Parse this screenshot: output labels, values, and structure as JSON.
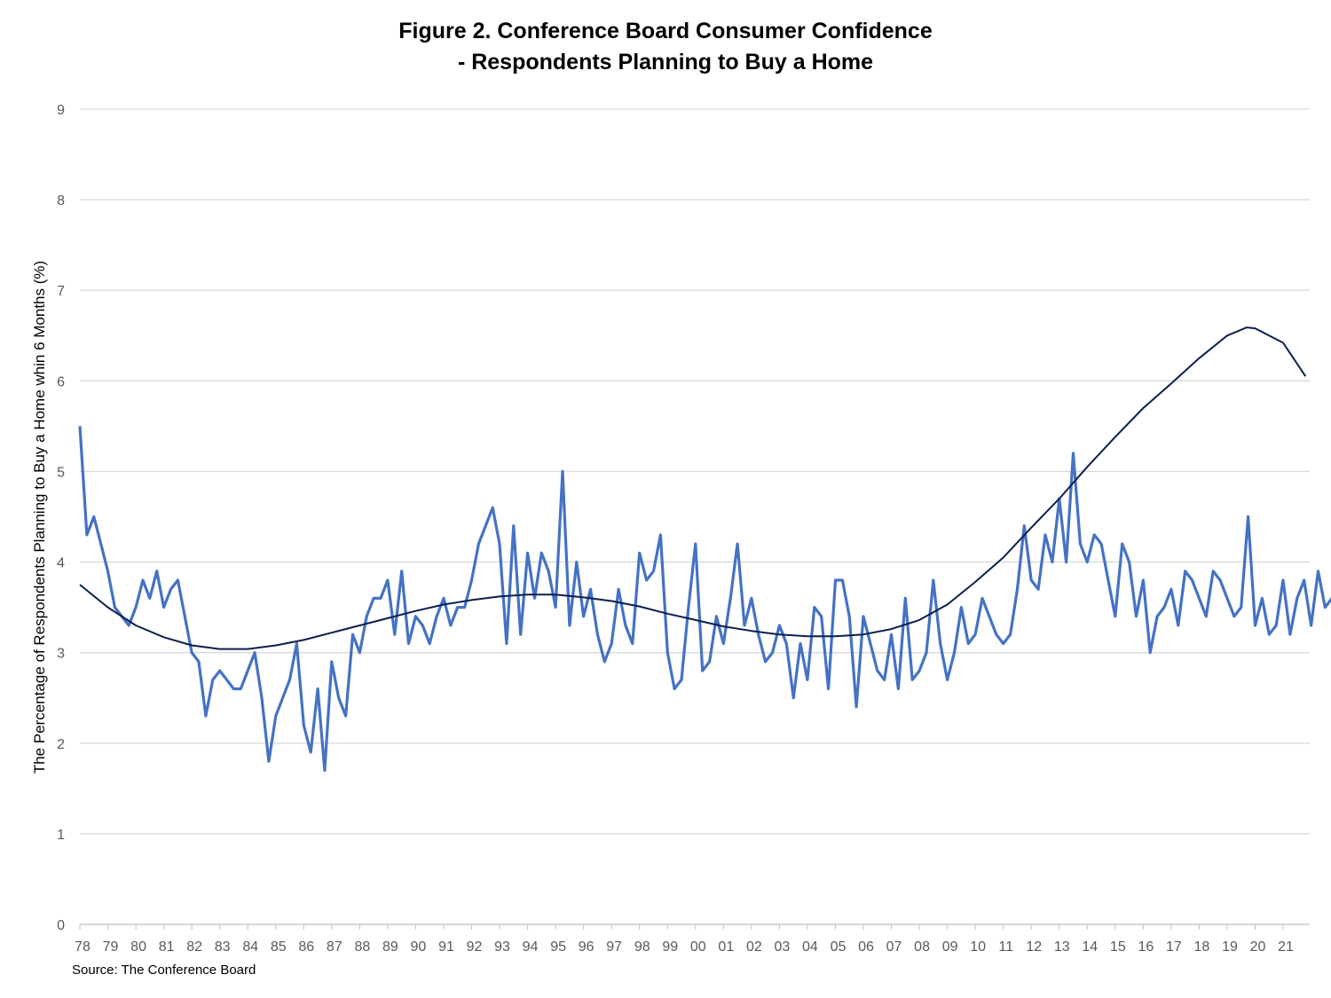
{
  "chart_data": {
    "type": "line",
    "title_line1": "Figure 2. Conference Board Consumer Confidence",
    "title_line2": "- Respondents Planning to Buy a Home",
    "ylabel": "The Percentage of Respondents Planning to Buy a Home whin 6 Months (%)",
    "source": "Source: The Conference Board",
    "ylim": [
      0,
      9
    ],
    "y_ticks": [
      "0",
      "1",
      "2",
      "3",
      "4",
      "5",
      "6",
      "7",
      "8",
      "9"
    ],
    "x_tick_labels": [
      "78",
      "79",
      "80",
      "81",
      "82",
      "83",
      "84",
      "85",
      "86",
      "87",
      "88",
      "89",
      "90",
      "91",
      "92",
      "93",
      "94",
      "95",
      "96",
      "97",
      "98",
      "99",
      "00",
      "01",
      "02",
      "03",
      "04",
      "05",
      "06",
      "07",
      "08",
      "09",
      "10",
      "11",
      "12",
      "13",
      "14",
      "15",
      "16",
      "17",
      "18",
      "19",
      "20",
      "21"
    ],
    "grid": "horizontal",
    "colors": {
      "series": "#4472C4",
      "trend": "#0B1F4F",
      "grid": "#D9D9D9"
    },
    "series": [
      {
        "role": "monthly",
        "x_start": 1978.0,
        "x_step": 0.25,
        "values": [
          5.5,
          4.3,
          4.5,
          4.2,
          3.9,
          3.5,
          3.4,
          3.3,
          3.5,
          3.8,
          3.6,
          3.9,
          3.5,
          3.7,
          3.8,
          3.4,
          3.0,
          2.9,
          2.3,
          2.7,
          2.8,
          2.7,
          2.6,
          2.6,
          2.8,
          3.0,
          2.5,
          1.8,
          2.3,
          2.5,
          2.7,
          3.1,
          2.2,
          1.9,
          2.6,
          1.7,
          2.9,
          2.5,
          2.3,
          3.2,
          3.0,
          3.4,
          3.6,
          3.6,
          3.8,
          3.2,
          3.9,
          3.1,
          3.4,
          3.3,
          3.1,
          3.4,
          3.6,
          3.3,
          3.5,
          3.5,
          3.8,
          4.2,
          4.4,
          4.6,
          4.2,
          3.1,
          4.4,
          3.2,
          4.1,
          3.6,
          4.1,
          3.9,
          3.5,
          5.0,
          3.3,
          4.0,
          3.4,
          3.7,
          3.2,
          2.9,
          3.1,
          3.7,
          3.3,
          3.1,
          4.1,
          3.8,
          3.9,
          4.3,
          3.0,
          2.6,
          2.7,
          3.5,
          4.2,
          2.8,
          2.9,
          3.4,
          3.1,
          3.6,
          4.2,
          3.3,
          3.6,
          3.2,
          2.9,
          3.0,
          3.3,
          3.1,
          2.5,
          3.1,
          2.7,
          3.5,
          3.4,
          2.6,
          3.8,
          3.8,
          3.4,
          2.4,
          3.4,
          3.1,
          2.8,
          2.7,
          3.2,
          2.6,
          3.6,
          2.7,
          2.8,
          3.0,
          3.8,
          3.1,
          2.7,
          3.0,
          3.5,
          3.1,
          3.2,
          3.6,
          3.4,
          3.2,
          3.1,
          3.2,
          3.7,
          4.4,
          3.8,
          3.7,
          4.3,
          4.0,
          4.7,
          4.0,
          5.2,
          4.2,
          4.0,
          4.3,
          4.2,
          3.8,
          3.4,
          4.2,
          4.0,
          3.4,
          3.8,
          3.0,
          3.4,
          3.5,
          3.7,
          3.3,
          3.9,
          3.8,
          3.6,
          3.4,
          3.9,
          3.8,
          3.6,
          3.4,
          3.5,
          4.5,
          3.3,
          3.6,
          3.2,
          3.3,
          3.8,
          3.2,
          3.6,
          3.8,
          3.3,
          3.9,
          3.5,
          3.6,
          4.1,
          3.4,
          3.8,
          4.0,
          4.1,
          3.8,
          2.6,
          3.4,
          4.0,
          4.1,
          3.5,
          3.7,
          3.4,
          3.0,
          2.9,
          2.8,
          3.4,
          3.6,
          3.8,
          3.1,
          2.9,
          3.2,
          3.0,
          3.4,
          2.8,
          2.6,
          2.7,
          3.2,
          2.5,
          2.4,
          3.4,
          2.6,
          3.2,
          2.5,
          2.6,
          2.5,
          2.2,
          2.8,
          2.9,
          2.6,
          2.4,
          2.6,
          2.8,
          2.1,
          1.7,
          2.6,
          2.8,
          2.2,
          2.0,
          2.2,
          2.1,
          3.7,
          3.5,
          5.2,
          4.6,
          5.5,
          4.1,
          4.4,
          4.7,
          5.4,
          4.5,
          5.2,
          5.4,
          5.5,
          5.4,
          6.6,
          3.8,
          5.6,
          5.5,
          5.4,
          6.9,
          5.4,
          6.2,
          5.0,
          5.5,
          5.6,
          5.5,
          5.3,
          5.1,
          5.0,
          5.6,
          5.9,
          5.7,
          5.6,
          6.2,
          5.8,
          5.4,
          5.8,
          6.1,
          7.4,
          6.3,
          5.8,
          5.9,
          6.2,
          5.9,
          6.5,
          6.7,
          6.0,
          6.5,
          6.3,
          6.7,
          7.3,
          6.4,
          6.8,
          7.4,
          6.0,
          6.4,
          6.0,
          6.3,
          6.2,
          6.0,
          6.3,
          6.1,
          6.6,
          6.4,
          6.3,
          5.5,
          5.4,
          6.3,
          6.4,
          5.8,
          7.4,
          6.1,
          5.1,
          6.5,
          6.6,
          5.9,
          6.8,
          6.3,
          6.1,
          6.2,
          6.1,
          7.5,
          6.6,
          6.3,
          6.9,
          6.1,
          5.8,
          7.5
        ]
      },
      {
        "role": "trend",
        "x": [
          1978.0,
          1979.0,
          1980.0,
          1981.0,
          1982.0,
          1983.0,
          1984.0,
          1985.0,
          1986.0,
          1987.0,
          1988.0,
          1989.0,
          1990.0,
          1991.0,
          1992.0,
          1993.0,
          1994.0,
          1995.0,
          1996.0,
          1997.0,
          1998.0,
          1999.0,
          2000.0,
          2001.0,
          2002.0,
          2003.0,
          2004.0,
          2005.0,
          2006.0,
          2007.0,
          2008.0,
          2009.0,
          2010.0,
          2011.0,
          2012.0,
          2013.0,
          2014.0,
          2015.0,
          2016.0,
          2017.0,
          2018.0,
          2019.0,
          2019.7,
          2020.0,
          2021.0,
          2021.8
        ],
        "values": [
          3.75,
          3.5,
          3.3,
          3.17,
          3.08,
          3.04,
          3.04,
          3.08,
          3.14,
          3.22,
          3.3,
          3.38,
          3.46,
          3.53,
          3.58,
          3.62,
          3.64,
          3.64,
          3.61,
          3.57,
          3.51,
          3.43,
          3.36,
          3.29,
          3.24,
          3.2,
          3.18,
          3.18,
          3.2,
          3.26,
          3.36,
          3.53,
          3.78,
          4.05,
          4.38,
          4.7,
          5.05,
          5.38,
          5.7,
          5.97,
          6.25,
          6.5,
          6.59,
          6.58,
          6.42,
          6.05
        ]
      }
    ]
  }
}
